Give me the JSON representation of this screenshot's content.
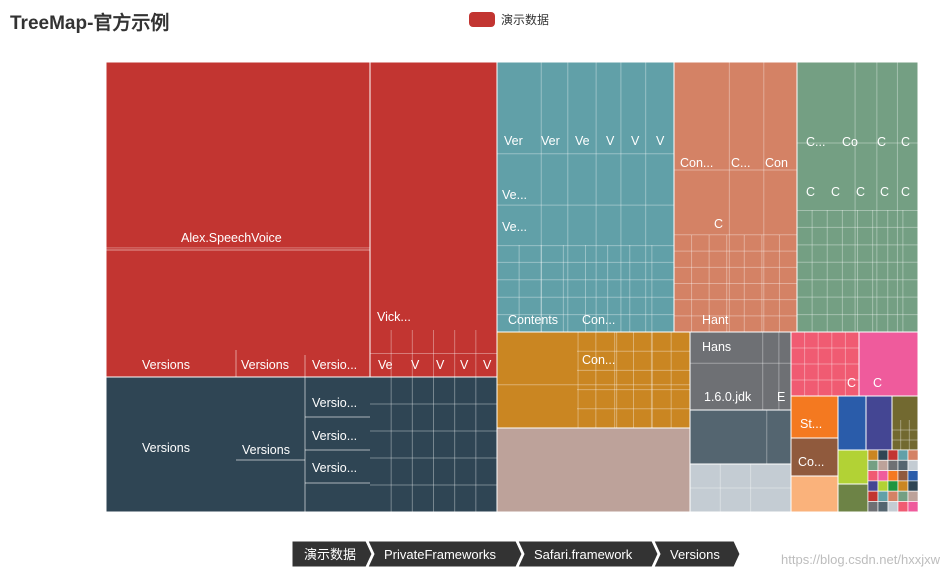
{
  "title": "TreeMap-官方示例",
  "legend": {
    "label": "演示数据",
    "color": "#c23531"
  },
  "breadcrumb": [
    "演示数据",
    "PrivateFrameworks",
    "Safari.framework",
    "Versions"
  ],
  "watermark": "https://blog.csdn.net/hxxjxw",
  "colors": {
    "red": "#c23531",
    "navy": "#2f4554",
    "teal": "#61a0a8",
    "salmon": "#d48265",
    "sage": "#749f83",
    "ochre": "#ca8622",
    "taupe": "#bda29a",
    "slate": "#6e7074",
    "gray": "#546570",
    "lightgray": "#c4ccd3",
    "pink": "#f05b72",
    "magenta": "#ef5b9c",
    "orange": "#f47920",
    "brown": "#905a3d",
    "peach": "#fab27b",
    "blue": "#2a5caa",
    "indigo": "#444693",
    "olive": "#726930",
    "lime": "#b2d235",
    "darkgreen": "#6d8346"
  },
  "chart_data": {
    "type": "treemap",
    "series_name": "演示数据",
    "path": [
      "演示数据",
      "PrivateFrameworks",
      "Safari.framework",
      "Versions"
    ],
    "nodes": [
      {
        "label": "Alex.SpeechVoice",
        "color": "red"
      },
      {
        "label": "Versions",
        "color": "red"
      },
      {
        "label": "Versions",
        "color": "red"
      },
      {
        "label": "Versio...",
        "color": "red"
      },
      {
        "label": "Vick...",
        "color": "red"
      },
      {
        "label": "Ve",
        "color": "red"
      },
      {
        "label": "V",
        "color": "red"
      },
      {
        "label": "V",
        "color": "red"
      },
      {
        "label": "V",
        "color": "red"
      },
      {
        "label": "V",
        "color": "red"
      },
      {
        "label": "Versions",
        "color": "navy"
      },
      {
        "label": "Versions",
        "color": "navy"
      },
      {
        "label": "Versio...",
        "color": "navy"
      },
      {
        "label": "Versio...",
        "color": "navy"
      },
      {
        "label": "Versio...",
        "color": "navy"
      },
      {
        "label": "Ver",
        "color": "teal"
      },
      {
        "label": "Ver",
        "color": "teal"
      },
      {
        "label": "Ve",
        "color": "teal"
      },
      {
        "label": "V",
        "color": "teal"
      },
      {
        "label": "V",
        "color": "teal"
      },
      {
        "label": "V",
        "color": "teal"
      },
      {
        "label": "Ve...",
        "color": "teal"
      },
      {
        "label": "Ve...",
        "color": "teal"
      },
      {
        "label": "Contents",
        "color": "teal"
      },
      {
        "label": "Con...",
        "color": "teal"
      },
      {
        "label": "Con...",
        "color": "salmon"
      },
      {
        "label": "C...",
        "color": "salmon"
      },
      {
        "label": "Con",
        "color": "salmon"
      },
      {
        "label": "C",
        "color": "salmon"
      },
      {
        "label": "Hant",
        "color": "salmon"
      },
      {
        "label": "C...",
        "color": "sage"
      },
      {
        "label": "Co",
        "color": "sage"
      },
      {
        "label": "C",
        "color": "sage"
      },
      {
        "label": "C",
        "color": "sage"
      },
      {
        "label": "C",
        "color": "sage"
      },
      {
        "label": "C",
        "color": "sage"
      },
      {
        "label": "C",
        "color": "sage"
      },
      {
        "label": "C",
        "color": "sage"
      },
      {
        "label": "C",
        "color": "sage"
      },
      {
        "label": "Con...",
        "color": "ochre"
      },
      {
        "label": "",
        "color": "taupe"
      },
      {
        "label": "Hans",
        "color": "slate"
      },
      {
        "label": "1.6.0.jdk",
        "color": "slate"
      },
      {
        "label": "E",
        "color": "slate"
      },
      {
        "label": "",
        "color": "gray"
      },
      {
        "label": "",
        "color": "lightgray"
      },
      {
        "label": "C",
        "color": "pink"
      },
      {
        "label": "C",
        "color": "magenta"
      },
      {
        "label": "St...",
        "color": "orange"
      },
      {
        "label": "Co...",
        "color": "brown"
      },
      {
        "label": "",
        "color": "peach"
      },
      {
        "label": "",
        "color": "blue"
      },
      {
        "label": "",
        "color": "indigo"
      },
      {
        "label": "",
        "color": "olive"
      },
      {
        "label": "",
        "color": "lime"
      },
      {
        "label": "",
        "color": "darkgreen"
      }
    ]
  }
}
